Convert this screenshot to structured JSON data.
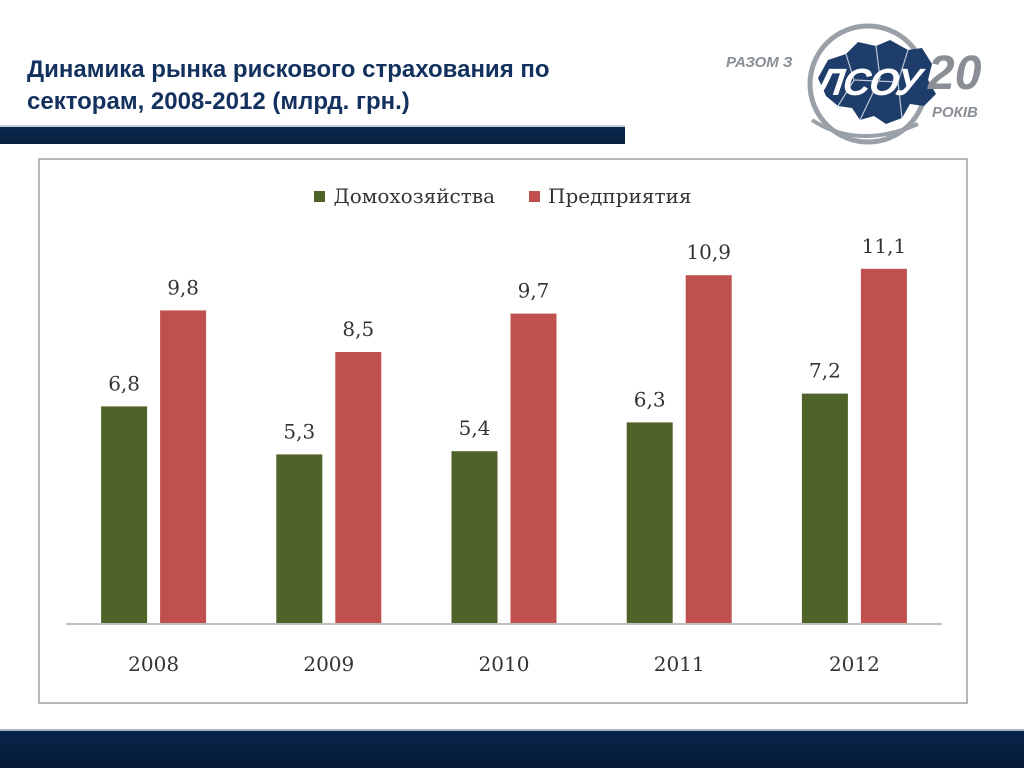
{
  "slide": {
    "title": "Динамика рынка рискового страхования по секторам, 2008-2012 (млрд. грн.)"
  },
  "logo": {
    "tagline": "РАЗОМ З",
    "abbr": "ЛСОУ",
    "years_number": "20",
    "years_word": "РОКІВ"
  },
  "colors": {
    "title": "#13315f",
    "bars_household": "#4f6228",
    "bars_enterprise": "#c0504d",
    "axis": "#bfbfbf",
    "labels": "#333333",
    "bar_navy": "#0a2a52"
  },
  "chart_data": {
    "type": "bar",
    "categories": [
      "2008",
      "2009",
      "2010",
      "2011",
      "2012"
    ],
    "series": [
      {
        "name": "Домохозяйства",
        "values": [
          6.8,
          5.3,
          5.4,
          6.3,
          7.2
        ],
        "labels": [
          "6,8",
          "5,3",
          "5,4",
          "6,3",
          "7,2"
        ],
        "color": "#4f6228"
      },
      {
        "name": "Предприятия",
        "values": [
          9.8,
          8.5,
          9.7,
          10.9,
          11.1
        ],
        "labels": [
          "9,8",
          "8,5",
          "9,7",
          "10,9",
          "11,1"
        ],
        "color": "#c0504d"
      }
    ],
    "title": "",
    "xlabel": "",
    "ylabel": "",
    "ylim": [
      0,
      12
    ],
    "legend": "top-center",
    "grid": false
  }
}
